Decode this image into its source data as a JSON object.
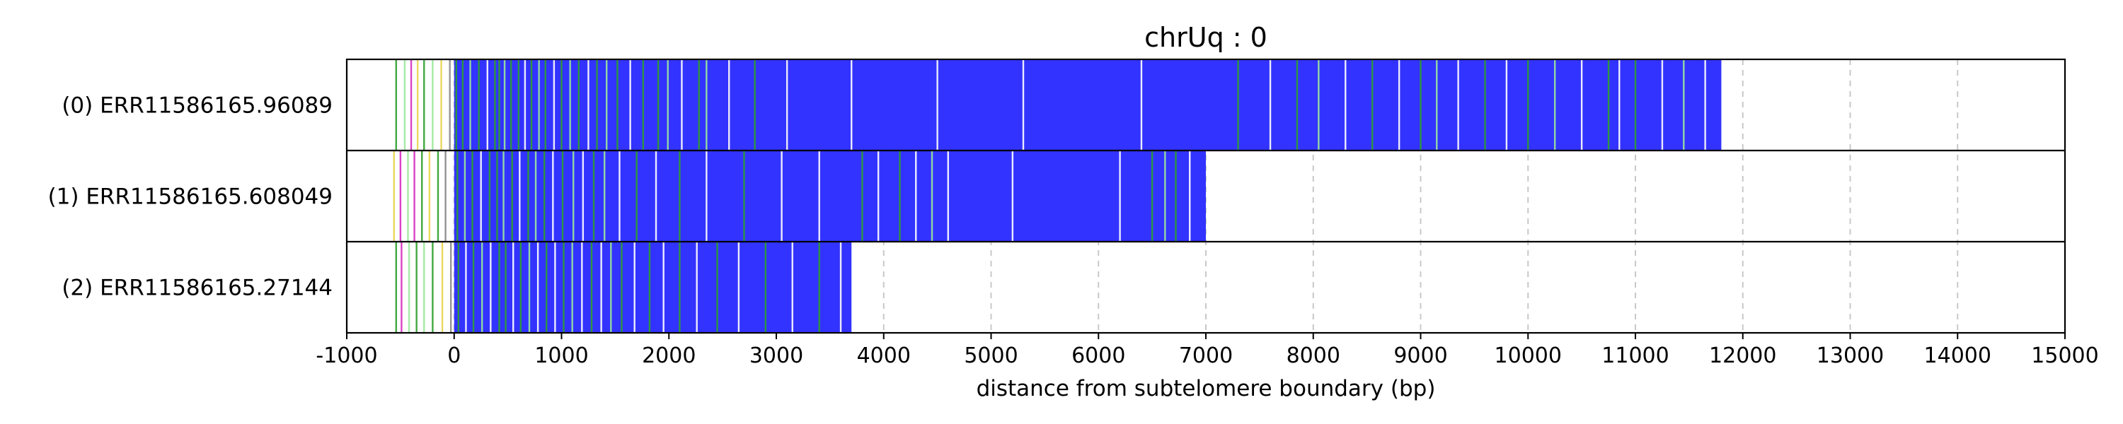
{
  "chart_data": {
    "type": "bar",
    "title": "chrUq : 0",
    "xlabel": "distance from subtelomere boundary (bp)",
    "ylabel": "",
    "xlim": [
      -1000,
      15000
    ],
    "x_ticks": [
      -1000,
      0,
      1000,
      2000,
      3000,
      4000,
      5000,
      6000,
      7000,
      8000,
      9000,
      10000,
      11000,
      12000,
      13000,
      14000,
      15000
    ],
    "grid": {
      "x": true,
      "style": "dashed"
    },
    "legend": "none",
    "colors": {
      "repeat": "#3333ff",
      "variant_green": "#2ca02c",
      "variant_light_green": "#9be89b",
      "variant_magenta": "#d62fbf",
      "variant_yellow": "#e8d44d",
      "variant_gray": "#888888",
      "variant_white": "#ffffff"
    },
    "series": [
      {
        "label": "(0) ERR11586165.96089",
        "repeat_start": 0,
        "repeat_end": 11800,
        "marks": [
          {
            "x": -540,
            "color": "#2ca02c"
          },
          {
            "x": -460,
            "color": "#9be89b"
          },
          {
            "x": -400,
            "color": "#d62fbf"
          },
          {
            "x": -340,
            "color": "#e8d44d"
          },
          {
            "x": -280,
            "color": "#2ca02c"
          },
          {
            "x": -200,
            "color": "#9be89b"
          },
          {
            "x": -120,
            "color": "#e8d44d"
          },
          {
            "x": -40,
            "color": "#888888"
          },
          {
            "x": 20,
            "color": "#2ca02c"
          },
          {
            "x": 80,
            "color": "#2ca02c"
          },
          {
            "x": 150,
            "color": "#9be89b"
          },
          {
            "x": 230,
            "color": "#2ca02c"
          },
          {
            "x": 310,
            "color": "#ffffff"
          },
          {
            "x": 380,
            "color": "#2ca02c"
          },
          {
            "x": 420,
            "color": "#2ca02c"
          },
          {
            "x": 470,
            "color": "#9be89b"
          },
          {
            "x": 530,
            "color": "#2ca02c"
          },
          {
            "x": 600,
            "color": "#2ca02c"
          },
          {
            "x": 660,
            "color": "#ffffff"
          },
          {
            "x": 720,
            "color": "#2ca02c"
          },
          {
            "x": 790,
            "color": "#9be89b"
          },
          {
            "x": 850,
            "color": "#2ca02c"
          },
          {
            "x": 930,
            "color": "#ffffff"
          },
          {
            "x": 1000,
            "color": "#2ca02c"
          },
          {
            "x": 1080,
            "color": "#9be89b"
          },
          {
            "x": 1160,
            "color": "#2ca02c"
          },
          {
            "x": 1250,
            "color": "#ffffff"
          },
          {
            "x": 1330,
            "color": "#2ca02c"
          },
          {
            "x": 1420,
            "color": "#9be89b"
          },
          {
            "x": 1520,
            "color": "#2ca02c"
          },
          {
            "x": 1640,
            "color": "#ffffff"
          },
          {
            "x": 1760,
            "color": "#2ca02c"
          },
          {
            "x": 1900,
            "color": "#2ca02c"
          },
          {
            "x": 1990,
            "color": "#9be89b"
          },
          {
            "x": 2120,
            "color": "#ffffff"
          },
          {
            "x": 2280,
            "color": "#2ca02c"
          },
          {
            "x": 2350,
            "color": "#9be89b"
          },
          {
            "x": 2560,
            "color": "#ffffff"
          },
          {
            "x": 2800,
            "color": "#2ca02c"
          },
          {
            "x": 3100,
            "color": "#ffffff"
          },
          {
            "x": 3700,
            "color": "#ffffff"
          },
          {
            "x": 4500,
            "color": "#ffffff"
          },
          {
            "x": 5300,
            "color": "#ffffff"
          },
          {
            "x": 6400,
            "color": "#ffffff"
          },
          {
            "x": 7300,
            "color": "#2ca02c"
          },
          {
            "x": 7600,
            "color": "#ffffff"
          },
          {
            "x": 7850,
            "color": "#2ca02c"
          },
          {
            "x": 8050,
            "color": "#9be89b"
          },
          {
            "x": 8300,
            "color": "#ffffff"
          },
          {
            "x": 8550,
            "color": "#2ca02c"
          },
          {
            "x": 8800,
            "color": "#ffffff"
          },
          {
            "x": 9000,
            "color": "#2ca02c"
          },
          {
            "x": 9150,
            "color": "#9be89b"
          },
          {
            "x": 9350,
            "color": "#ffffff"
          },
          {
            "x": 9600,
            "color": "#2ca02c"
          },
          {
            "x": 9800,
            "color": "#ffffff"
          },
          {
            "x": 10000,
            "color": "#2ca02c"
          },
          {
            "x": 10250,
            "color": "#9be89b"
          },
          {
            "x": 10500,
            "color": "#ffffff"
          },
          {
            "x": 10750,
            "color": "#2ca02c"
          },
          {
            "x": 10850,
            "color": "#ffffff"
          },
          {
            "x": 11000,
            "color": "#2ca02c"
          },
          {
            "x": 11250,
            "color": "#ffffff"
          },
          {
            "x": 11450,
            "color": "#9be89b"
          },
          {
            "x": 11650,
            "color": "#ffffff"
          }
        ]
      },
      {
        "label": "(1) ERR11586165.608049",
        "repeat_start": 0,
        "repeat_end": 7000,
        "marks": [
          {
            "x": -560,
            "color": "#e8d44d"
          },
          {
            "x": -500,
            "color": "#d62fbf"
          },
          {
            "x": -430,
            "color": "#9be89b"
          },
          {
            "x": -370,
            "color": "#d62fbf"
          },
          {
            "x": -300,
            "color": "#2ca02c"
          },
          {
            "x": -230,
            "color": "#e8d44d"
          },
          {
            "x": -150,
            "color": "#2ca02c"
          },
          {
            "x": -80,
            "color": "#888888"
          },
          {
            "x": 30,
            "color": "#2ca02c"
          },
          {
            "x": 100,
            "color": "#9be89b"
          },
          {
            "x": 170,
            "color": "#2ca02c"
          },
          {
            "x": 250,
            "color": "#ffffff"
          },
          {
            "x": 330,
            "color": "#2ca02c"
          },
          {
            "x": 400,
            "color": "#2ca02c"
          },
          {
            "x": 460,
            "color": "#9be89b"
          },
          {
            "x": 540,
            "color": "#2ca02c"
          },
          {
            "x": 610,
            "color": "#ffffff"
          },
          {
            "x": 690,
            "color": "#2ca02c"
          },
          {
            "x": 760,
            "color": "#9be89b"
          },
          {
            "x": 840,
            "color": "#2ca02c"
          },
          {
            "x": 920,
            "color": "#ffffff"
          },
          {
            "x": 1010,
            "color": "#2ca02c"
          },
          {
            "x": 1110,
            "color": "#9be89b"
          },
          {
            "x": 1200,
            "color": "#ffffff"
          },
          {
            "x": 1300,
            "color": "#2ca02c"
          },
          {
            "x": 1400,
            "color": "#9be89b"
          },
          {
            "x": 1540,
            "color": "#ffffff"
          },
          {
            "x": 1700,
            "color": "#2ca02c"
          },
          {
            "x": 1880,
            "color": "#ffffff"
          },
          {
            "x": 2100,
            "color": "#2ca02c"
          },
          {
            "x": 2350,
            "color": "#ffffff"
          },
          {
            "x": 2700,
            "color": "#2ca02c"
          },
          {
            "x": 3050,
            "color": "#ffffff"
          },
          {
            "x": 3400,
            "color": "#ffffff"
          },
          {
            "x": 3800,
            "color": "#2ca02c"
          },
          {
            "x": 3950,
            "color": "#ffffff"
          },
          {
            "x": 4150,
            "color": "#2ca02c"
          },
          {
            "x": 4300,
            "color": "#ffffff"
          },
          {
            "x": 4450,
            "color": "#9be89b"
          },
          {
            "x": 4600,
            "color": "#ffffff"
          },
          {
            "x": 5200,
            "color": "#ffffff"
          },
          {
            "x": 6200,
            "color": "#ffffff"
          },
          {
            "x": 6500,
            "color": "#2ca02c"
          },
          {
            "x": 6620,
            "color": "#9be89b"
          },
          {
            "x": 6720,
            "color": "#2ca02c"
          },
          {
            "x": 6850,
            "color": "#ffffff"
          }
        ]
      },
      {
        "label": "(2) ERR11586165.27144",
        "repeat_start": 0,
        "repeat_end": 3700,
        "marks": [
          {
            "x": -540,
            "color": "#2ca02c"
          },
          {
            "x": -490,
            "color": "#d62fbf"
          },
          {
            "x": -420,
            "color": "#9be89b"
          },
          {
            "x": -350,
            "color": "#2ca02c"
          },
          {
            "x": -280,
            "color": "#9be89b"
          },
          {
            "x": -200,
            "color": "#2ca02c"
          },
          {
            "x": -110,
            "color": "#e8d44d"
          },
          {
            "x": -30,
            "color": "#888888"
          },
          {
            "x": 40,
            "color": "#2ca02c"
          },
          {
            "x": 110,
            "color": "#ffffff"
          },
          {
            "x": 180,
            "color": "#2ca02c"
          },
          {
            "x": 260,
            "color": "#9be89b"
          },
          {
            "x": 340,
            "color": "#ffffff"
          },
          {
            "x": 420,
            "color": "#2ca02c"
          },
          {
            "x": 480,
            "color": "#2ca02c"
          },
          {
            "x": 550,
            "color": "#ffffff"
          },
          {
            "x": 620,
            "color": "#2ca02c"
          },
          {
            "x": 700,
            "color": "#9be89b"
          },
          {
            "x": 780,
            "color": "#ffffff"
          },
          {
            "x": 860,
            "color": "#2ca02c"
          },
          {
            "x": 940,
            "color": "#ffffff"
          },
          {
            "x": 1020,
            "color": "#2ca02c"
          },
          {
            "x": 1100,
            "color": "#9be89b"
          },
          {
            "x": 1190,
            "color": "#ffffff"
          },
          {
            "x": 1280,
            "color": "#2ca02c"
          },
          {
            "x": 1370,
            "color": "#ffffff"
          },
          {
            "x": 1460,
            "color": "#9be89b"
          },
          {
            "x": 1560,
            "color": "#2ca02c"
          },
          {
            "x": 1680,
            "color": "#ffffff"
          },
          {
            "x": 1820,
            "color": "#2ca02c"
          },
          {
            "x": 1950,
            "color": "#ffffff"
          },
          {
            "x": 2100,
            "color": "#2ca02c"
          },
          {
            "x": 2260,
            "color": "#ffffff"
          },
          {
            "x": 2450,
            "color": "#2ca02c"
          },
          {
            "x": 2650,
            "color": "#ffffff"
          },
          {
            "x": 2900,
            "color": "#2ca02c"
          },
          {
            "x": 3150,
            "color": "#ffffff"
          },
          {
            "x": 3400,
            "color": "#2ca02c"
          },
          {
            "x": 3600,
            "color": "#ffffff"
          }
        ]
      }
    ]
  }
}
